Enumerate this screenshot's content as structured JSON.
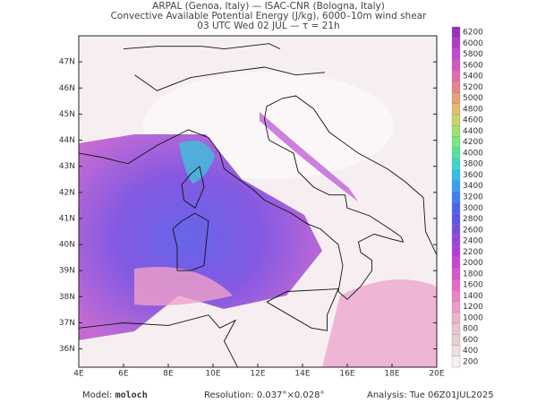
{
  "header": {
    "line1": "ARPAL (Genoa, Italy)  —  ISAC-CNR (Bologna, Italy)",
    "line2": "Convective Available Potential Energy (J/kg), 6000–10m wind shear",
    "line3": "03 UTC Wed 02 JUL  —  τ = 21h"
  },
  "map": {
    "lat_ticks": [
      {
        "value": 36,
        "label": "36N"
      },
      {
        "value": 37,
        "label": "37N"
      },
      {
        "value": 38,
        "label": "38N"
      },
      {
        "value": 39,
        "label": "39N"
      },
      {
        "value": 40,
        "label": "40N"
      },
      {
        "value": 41,
        "label": "41N"
      },
      {
        "value": 42,
        "label": "42N"
      },
      {
        "value": 43,
        "label": "43N"
      },
      {
        "value": 44,
        "label": "44N"
      },
      {
        "value": 45,
        "label": "45N"
      },
      {
        "value": 46,
        "label": "46N"
      },
      {
        "value": 47,
        "label": "47N"
      }
    ],
    "lon_ticks": [
      {
        "value": 4,
        "label": "4E"
      },
      {
        "value": 6,
        "label": "6E"
      },
      {
        "value": 8,
        "label": "8E"
      },
      {
        "value": 10,
        "label": "10E"
      },
      {
        "value": 12,
        "label": "12E"
      },
      {
        "value": 14,
        "label": "14E"
      },
      {
        "value": 16,
        "label": "16E"
      },
      {
        "value": 18,
        "label": "18E"
      },
      {
        "value": 20,
        "label": "20E"
      }
    ],
    "lonlim": [
      4,
      20
    ],
    "latlim": [
      35.3,
      48
    ]
  },
  "colorbar": {
    "levels": [
      200,
      400,
      600,
      800,
      1000,
      1200,
      1400,
      1600,
      1800,
      2000,
      2200,
      2400,
      2600,
      2800,
      3000,
      3200,
      3400,
      3600,
      3800,
      4000,
      4200,
      4400,
      4600,
      4800,
      5000,
      5200,
      5400,
      5600,
      5800,
      6000,
      6200
    ],
    "colors": [
      "#f4f0f0",
      "#ece0e0",
      "#e6d0d0",
      "#e8c4cc",
      "#eab4c8",
      "#ec9cc6",
      "#ea84c6",
      "#e46ac8",
      "#dc54cc",
      "#cc44d0",
      "#b83cd6",
      "#9a44dc",
      "#7c4ce2",
      "#5e54e8",
      "#4a64ee",
      "#3c80f2",
      "#34a0f0",
      "#30c0e8",
      "#38d8c8",
      "#50e4a0",
      "#78e880",
      "#a0e070",
      "#c8d46c",
      "#e0bc70",
      "#e8a078",
      "#e88490",
      "#e06cac",
      "#d458c4",
      "#c448d0",
      "#ae3cc8",
      "#9830b8"
    ]
  },
  "footer": {
    "model_label": "Model:",
    "model": "moloch",
    "resolution_label": "Resolution:",
    "resolution": "0.037°×0.028°",
    "analysis_label": "Analysis:",
    "analysis": "Tue 06Z01JUL2025"
  }
}
